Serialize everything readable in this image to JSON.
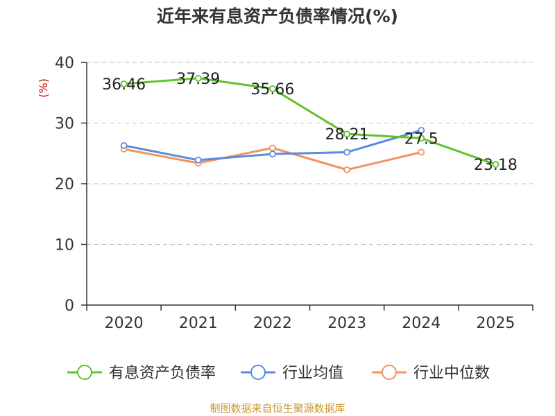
{
  "chart_data": {
    "type": "line",
    "title": "近年来有息资产负债率情况(%)",
    "ylabel": "(%)",
    "xlabel": "",
    "categories": [
      "2020",
      "2021",
      "2022",
      "2023",
      "2024",
      "2025"
    ],
    "ylim": [
      0,
      40
    ],
    "yticks": [
      0,
      10,
      20,
      30,
      40
    ],
    "grid": true,
    "legend_position": "bottom",
    "series": [
      {
        "name": "有息资产负债率",
        "color": "#5dc42b",
        "values": [
          36.46,
          37.39,
          35.66,
          28.21,
          27.5,
          23.18
        ],
        "labels": [
          "36.46",
          "37.39",
          "35.66",
          "28.21",
          "27.5",
          "23.18"
        ]
      },
      {
        "name": "行业均值",
        "color": "#5b8ae0",
        "values": [
          26.3,
          23.9,
          24.9,
          25.2,
          28.8,
          null
        ]
      },
      {
        "name": "行业中位数",
        "color": "#f5915e",
        "values": [
          25.7,
          23.4,
          25.9,
          22.3,
          25.2,
          null
        ]
      }
    ]
  },
  "colors": {
    "ylabel": "#cc0000",
    "source": "#c8962d",
    "axis": "#333333",
    "grid": "#bbbbbb"
  },
  "footer": {
    "source": "制图数据来自恒生聚源数据库"
  }
}
